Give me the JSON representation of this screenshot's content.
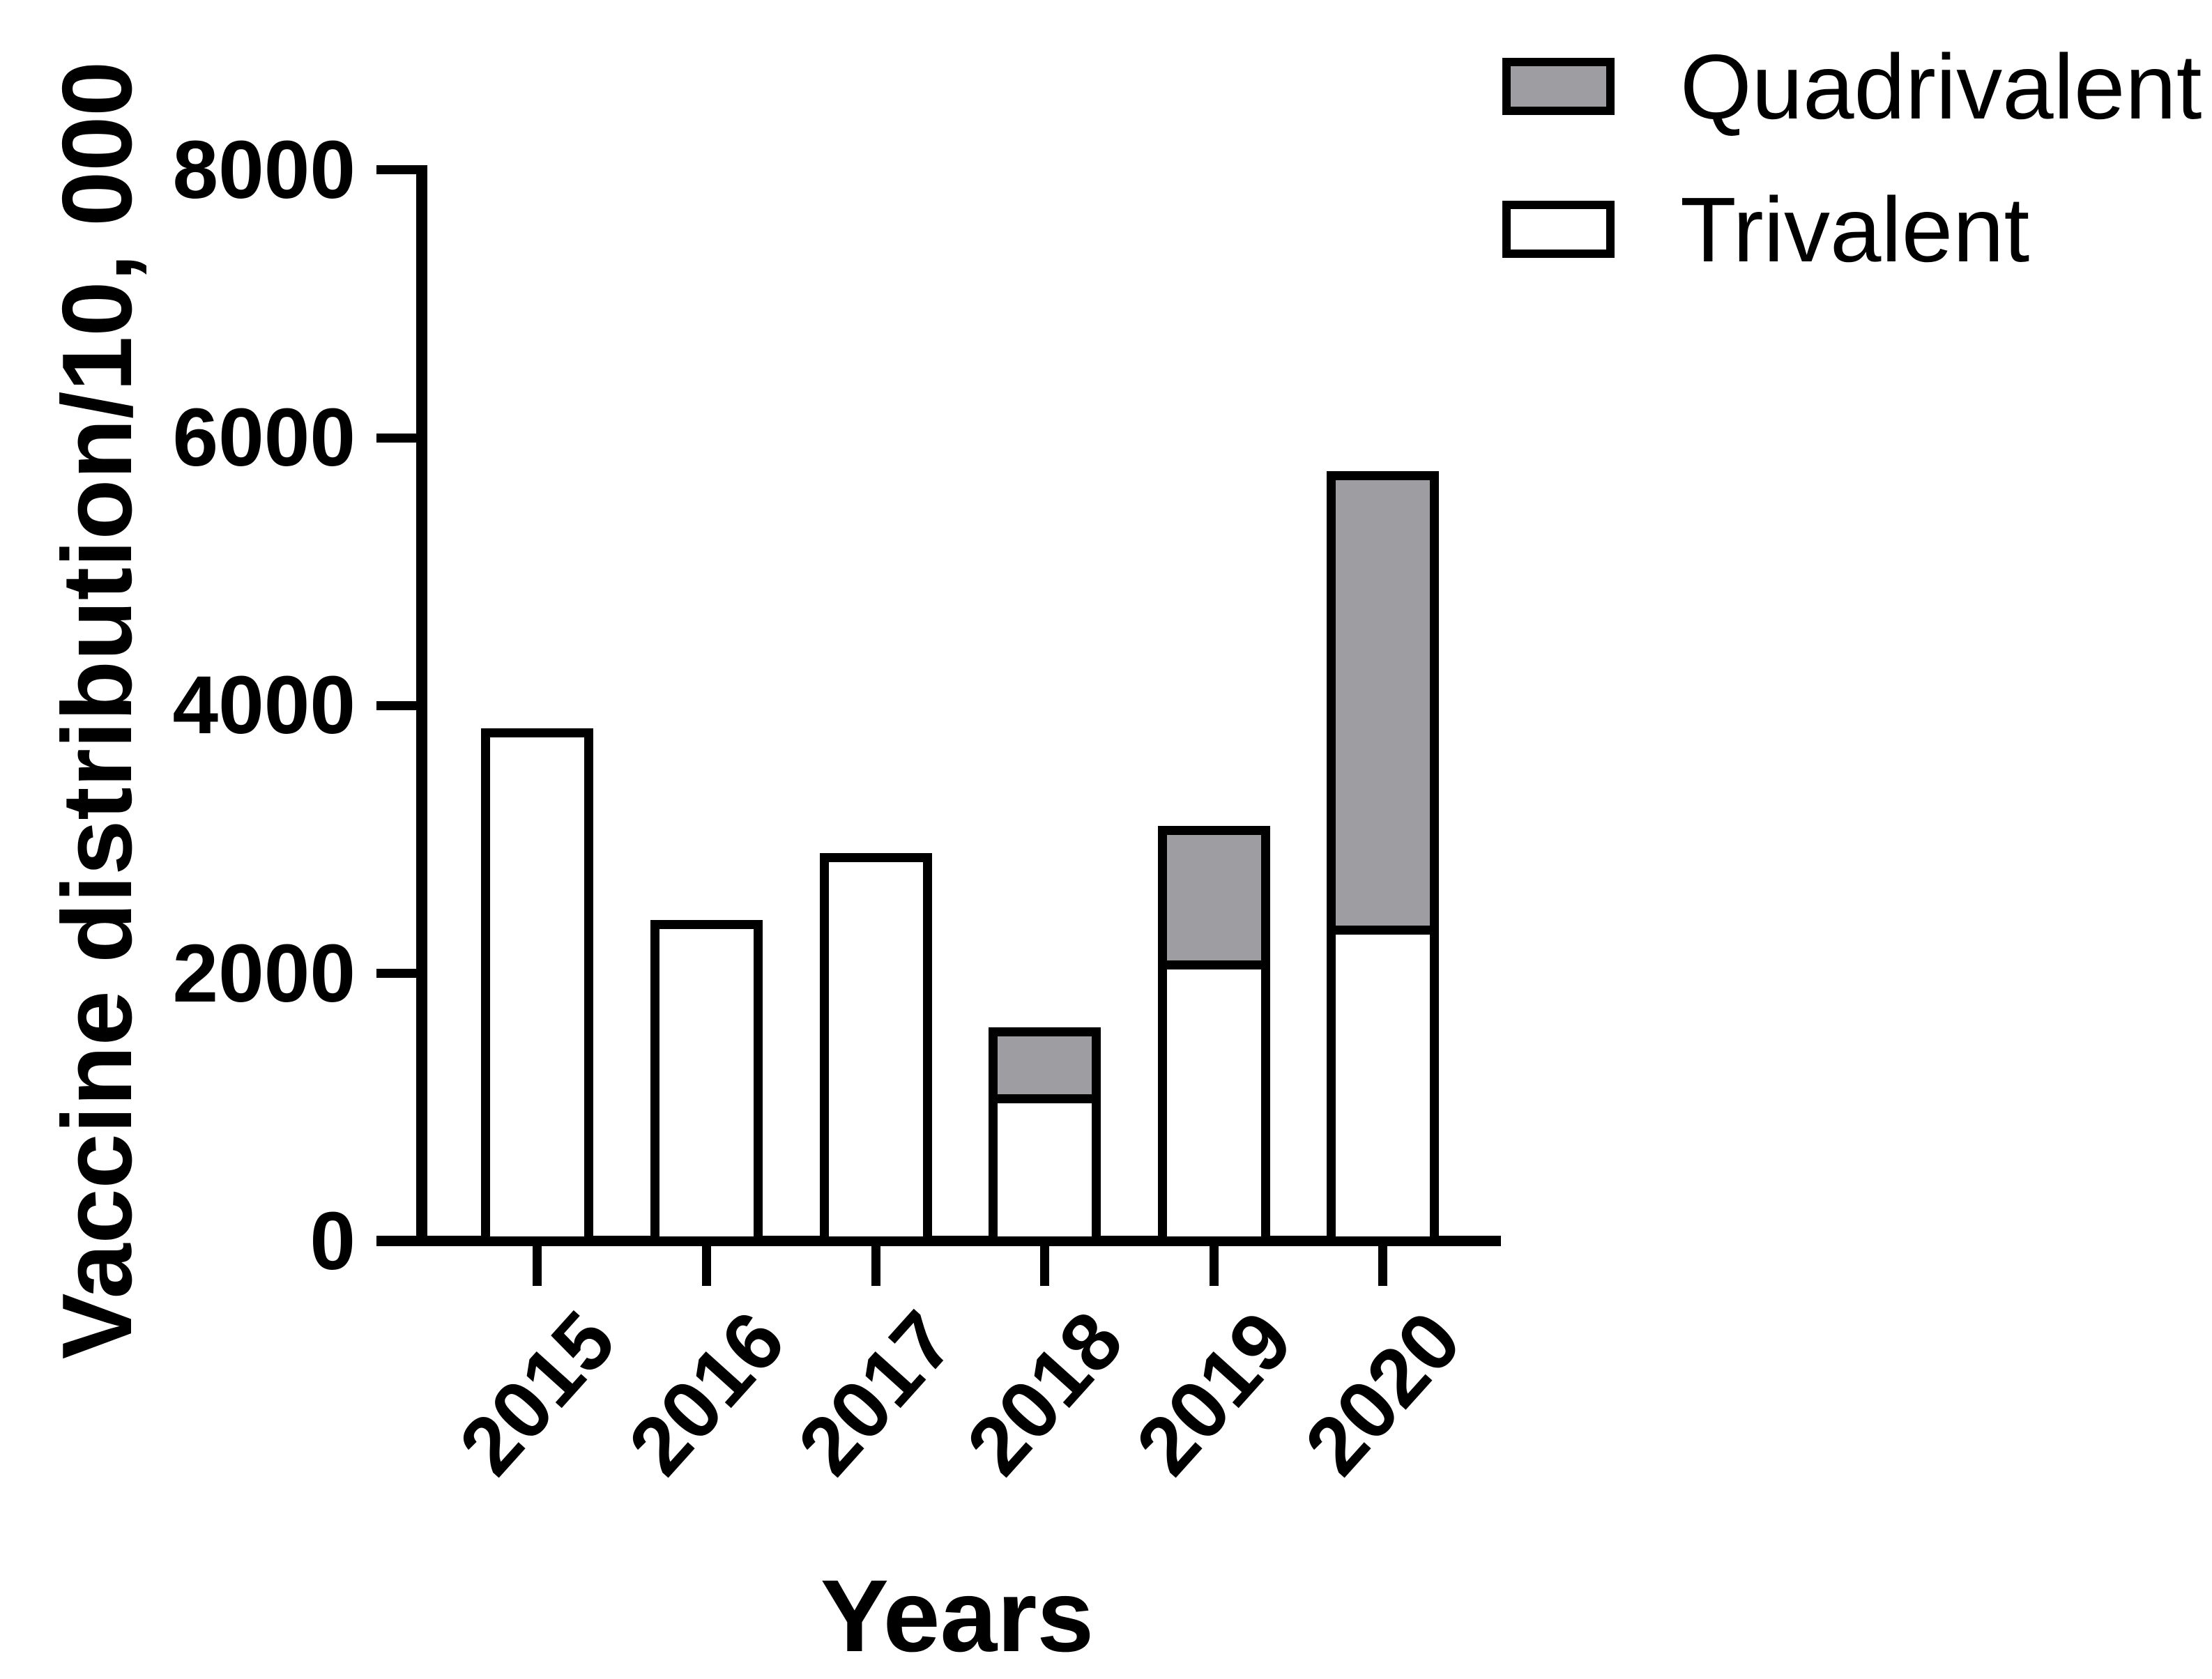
{
  "chart_data": {
    "type": "bar",
    "stacked": true,
    "title": "",
    "xlabel": "Years",
    "ylabel": "Vaccine distribution/10, 000",
    "categories": [
      "2015",
      "2016",
      "2017",
      "2018",
      "2019",
      "2020"
    ],
    "series": [
      {
        "name": "Quadrivalent",
        "color": "#9e9ea2",
        "values": [
          0,
          0,
          0,
          500,
          1000,
          3390
        ]
      },
      {
        "name": "Trivalent",
        "color": "#ffffff",
        "values": [
          3830,
          2400,
          2900,
          1100,
          2100,
          2360
        ]
      }
    ],
    "stack_order": [
      "Trivalent",
      "Quadrivalent"
    ],
    "totals": [
      3830,
      2400,
      2900,
      1600,
      3100,
      5750
    ],
    "ylim": [
      0,
      8000
    ],
    "yticks": [
      "0",
      "2000",
      "4000",
      "6000",
      "8000"
    ],
    "grid": false,
    "legend_position": "top-right",
    "axis_color": "#000000",
    "bar_outline_color": "#000000"
  }
}
